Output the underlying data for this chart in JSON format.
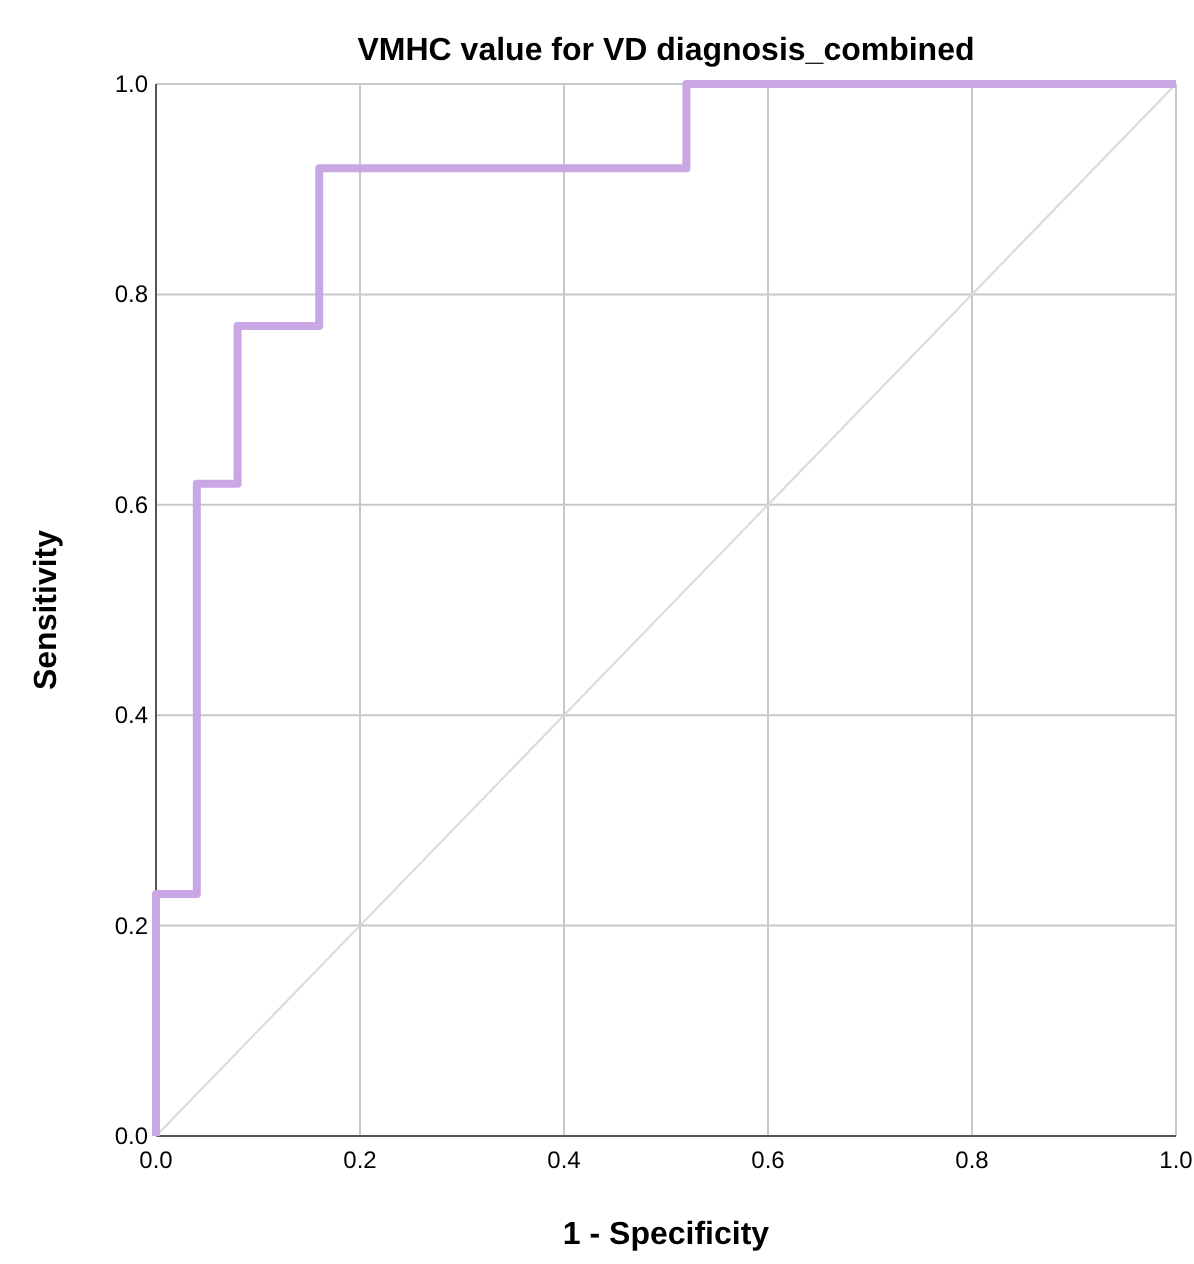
{
  "chart_data": {
    "type": "line",
    "title": "VMHC value for VD diagnosis_combined",
    "xlabel": "1 - Specificity",
    "ylabel": "Sensitivity",
    "series": [
      {
        "type": "step",
        "color": "#c9a6e4",
        "x": [
          0,
          0,
          0.04,
          0.04,
          0.08,
          0.08,
          0.16,
          0.16,
          0.52,
          0.52,
          1
        ],
        "values": [
          0,
          0.23,
          0.23,
          0.62,
          0.62,
          0.77,
          0.77,
          0.92,
          0.92,
          1,
          1
        ]
      },
      {
        "color": "#d9d9d9",
        "x": [
          0,
          1
        ],
        "values": [
          0,
          1
        ]
      }
    ],
    "xlim": [
      0,
      1
    ],
    "ylim": [
      0,
      1
    ],
    "xticks": [
      {
        "value": 0,
        "label": "0.0"
      },
      0.2,
      0.4,
      0.6,
      0.8,
      {
        "value": 1,
        "label": "1.0"
      }
    ],
    "yticks": [
      {
        "value": 0,
        "label": "0.0"
      },
      0.2,
      0.4,
      0.6,
      0.8,
      {
        "value": 1,
        "label": "1.0"
      }
    ],
    "grid": true,
    "marker": "none",
    "line_style": "solid"
  }
}
